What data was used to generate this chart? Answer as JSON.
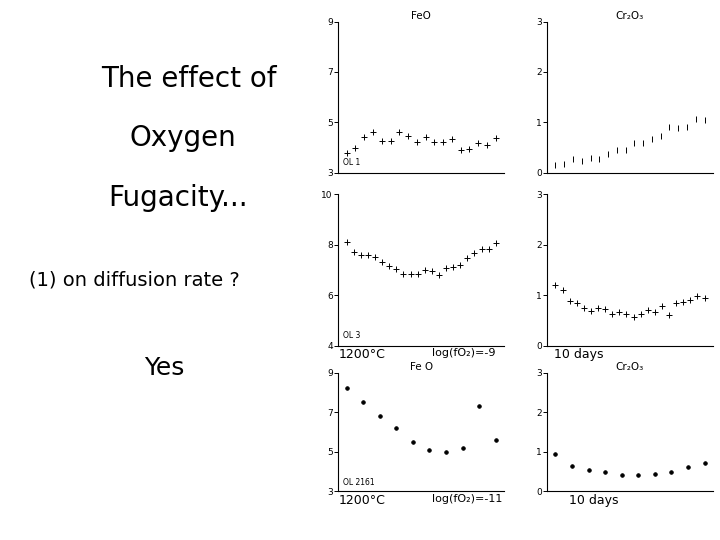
{
  "title_line1": "The effect of",
  "title_line2": "Oxygen",
  "title_line3": "Fugacity...",
  "subtitle": "(1) on diffusion rate ?",
  "answer": "Yes",
  "bg_color": "#ffffff",
  "text_color": "#000000",
  "row1_feo_title": "FeO",
  "row1_feo_sample": "OL 1",
  "row1_feo_ylim": [
    3,
    9
  ],
  "row1_feo_yticks": [
    3,
    5,
    7,
    9
  ],
  "row1_cr_title": "Cr₂O₃",
  "row1_cr_ylim": [
    0,
    3
  ],
  "row1_cr_yticks": [
    0,
    1,
    2,
    3
  ],
  "row2_feo_title": "",
  "row2_feo_sample": "OL 3",
  "row2_feo_ylim": [
    4,
    10
  ],
  "row2_feo_yticks": [
    4,
    6,
    8,
    10
  ],
  "row2_cr_ylim": [
    0,
    3
  ],
  "row2_cr_yticks": [
    0,
    1,
    2,
    3
  ],
  "row2_caption_temp": "1200°C",
  "row2_caption_fo2": "log(fO₂)=-9",
  "row2_caption_days": "10 days",
  "row3_feo_title": "Fe O",
  "row3_feo_sample": "OL 2161",
  "row3_feo_ylim": [
    3,
    9
  ],
  "row3_feo_yticks": [
    3,
    5,
    7,
    9
  ],
  "row3_cr_title": "Cr₂O₃",
  "row3_cr_ylim": [
    0,
    3
  ],
  "row3_cr_yticks": [
    0,
    1,
    2,
    3
  ],
  "row3_caption_temp": "1200°C",
  "row3_caption_fo2": "log(fO₂)=-11",
  "row3_caption_days": "10 days"
}
